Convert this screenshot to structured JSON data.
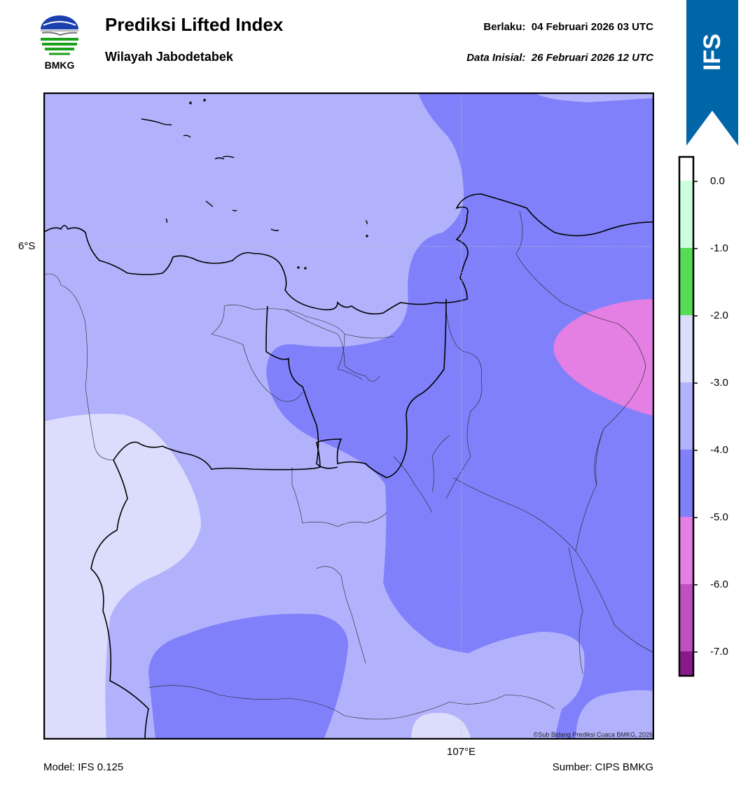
{
  "header": {
    "title": "Prediksi Lifted Index",
    "subtitle": "Wilayah Jabodetabek",
    "valid_label": "Berlaku:",
    "valid_value": "04 Februari 2026 03 UTC",
    "init_label": "Data Inisial:",
    "init_value": "26 Februari 2026 12 UTC"
  },
  "logo": {
    "text": "BMKG",
    "icon": "bmkg-logo-icon"
  },
  "badge": {
    "text": "IFS",
    "color": "#0066a8"
  },
  "map": {
    "lat_label": "6°S",
    "lon_label": "107°E",
    "copyright": "©Sub Bidang Prediksi Cuaca BMKG, 2026",
    "fill_colors": {
      "neg3_to_neg2": "#dcdcfc",
      "neg4_to_neg3": "#b2b2fc",
      "neg5_to_neg4": "#8080fa",
      "neg6_to_neg5": "#e47fe4"
    }
  },
  "colorbar": {
    "ticks": [
      "0.0",
      "-1.0",
      "-2.0",
      "-3.0",
      "-4.0",
      "-5.0",
      "-6.0",
      "-7.0"
    ],
    "colors": [
      "#ccffdd",
      "#ccffcc",
      "#55dd55",
      "#dcdcfc",
      "#b2b2fc",
      "#8080fa",
      "#e47fe4",
      "#d060d0",
      "#b030b0",
      "#8a1a8a"
    ]
  },
  "footer": {
    "model": "Model: IFS 0.125",
    "source": "Sumber: CIPS BMKG"
  }
}
